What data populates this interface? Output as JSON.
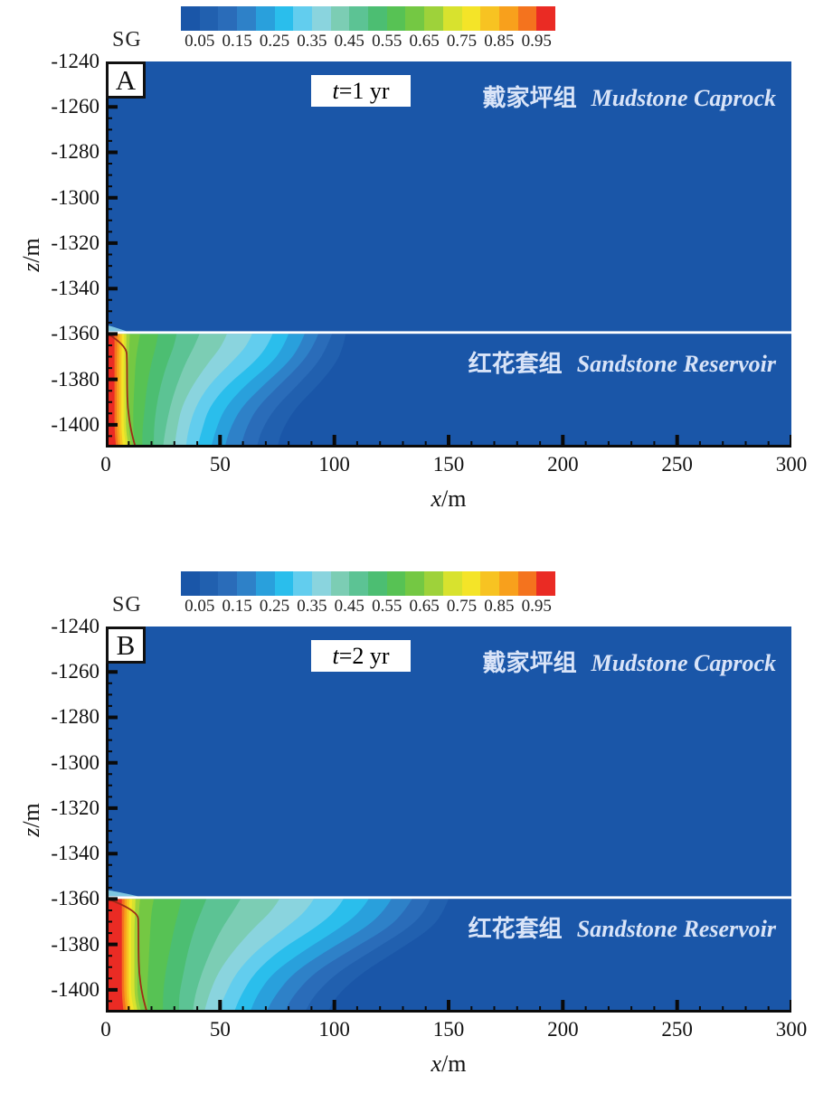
{
  "colorbar": {
    "title": "SG",
    "labels": [
      "0.05",
      "0.15",
      "0.25",
      "0.35",
      "0.45",
      "0.55",
      "0.65",
      "0.75",
      "0.85",
      "0.95"
    ]
  },
  "axes": {
    "x_label_var": "x",
    "x_label_unit": "/m",
    "y_label_var": "z",
    "y_label_unit": "/m",
    "x_ticks": [
      0,
      50,
      100,
      150,
      200,
      250,
      300
    ],
    "y_ticks": [
      -1240,
      -1260,
      -1280,
      -1300,
      -1320,
      -1340,
      -1360,
      -1380,
      -1400
    ]
  },
  "panels": [
    {
      "letter": "A",
      "time_var": "t",
      "time_rest": "=1 yr",
      "caprock_zh": "戴家坪组",
      "caprock_en": "Mudstone Caprock",
      "reservoir_zh": "红花套组",
      "reservoir_en": "Sandstone Reservoir"
    },
    {
      "letter": "B",
      "time_var": "t",
      "time_rest": "=2 yr",
      "caprock_zh": "戴家坪组",
      "caprock_en": "Mudstone Caprock",
      "reservoir_zh": "红花套组",
      "reservoir_en": "Sandstone Reservoir"
    }
  ],
  "chart_data": {
    "type": "heatmap",
    "variable": "SG (gas saturation), filled contour cross-sections of CO2 plume",
    "x_range_m": [
      0,
      300
    ],
    "z_range_m": [
      -1240,
      -1410
    ],
    "interface_z_m": -1360,
    "levels": [
      0.05,
      0.1,
      0.15,
      0.2,
      0.25,
      0.3,
      0.35,
      0.4,
      0.45,
      0.5,
      0.55,
      0.6,
      0.65,
      0.7,
      0.75,
      0.8,
      0.85,
      0.9,
      0.95
    ],
    "palette": [
      "#1A56A8",
      "#2160AF",
      "#2A6CB9",
      "#2E81C8",
      "#29A0DC",
      "#2ABEEC",
      "#62CDEE",
      "#8AD4DE",
      "#7CCDB4",
      "#5CC394",
      "#4CBE72",
      "#57C254",
      "#74C843",
      "#9ED23A",
      "#D8E22E",
      "#F4E428",
      "#F7C322",
      "#F8A01C",
      "#F4731E",
      "#EA2B24"
    ],
    "background_color": "#1A56A8",
    "interface_line_color": "#FFFFFF",
    "outline_color": "#9E2B17",
    "depth_fractions": [
      0,
      0.1,
      0.25,
      0.45,
      0.65,
      0.85,
      1
    ],
    "panels": [
      {
        "label": "A",
        "time": "t=1 yr",
        "extents_m": [
          [
            105,
            104,
            101,
            93,
            83,
            77,
            75
          ],
          [
            99,
            97,
            93,
            84,
            74,
            68,
            66
          ],
          [
            93,
            91,
            86,
            76,
            66,
            61,
            59
          ],
          [
            87,
            85,
            80,
            69,
            59,
            54,
            52
          ],
          [
            80,
            78,
            73,
            61,
            52,
            48,
            46
          ],
          [
            73,
            71,
            65,
            53,
            45,
            42,
            40
          ],
          [
            64,
            62,
            55,
            45,
            39,
            36,
            35
          ],
          [
            53,
            51,
            45,
            38,
            33,
            31,
            30
          ],
          [
            41,
            39,
            35,
            31,
            28,
            26,
            25
          ],
          [
            31,
            30,
            27,
            24,
            22,
            21,
            21
          ],
          [
            23,
            22,
            20,
            18,
            17,
            16,
            16
          ],
          [
            15,
            14,
            13,
            12.5,
            12,
            12,
            12.5
          ],
          [
            10.5,
            10.3,
            10,
            10,
            10,
            10,
            11.5
          ],
          [
            9,
            9,
            8.8,
            8.8,
            8.8,
            8.8,
            10
          ],
          [
            8,
            8,
            7.8,
            7.8,
            7.8,
            7.8,
            9
          ],
          [
            7,
            7,
            6.8,
            6.8,
            6.8,
            6.8,
            7.5
          ],
          [
            6,
            6,
            5.8,
            5.8,
            5.8,
            5.8,
            6.5
          ],
          [
            5,
            5,
            4.8,
            4.8,
            4.8,
            4.8,
            5.5
          ],
          [
            3.8,
            3.8,
            3.8,
            3.8,
            3.8,
            3.8,
            4.5
          ]
        ],
        "outline_x_m": [
          1,
          9,
          9.3,
          9.3,
          9.5,
          11,
          13
        ],
        "sliver_m": 9
      },
      {
        "label": "B",
        "time": "t=2 yr",
        "extents_m": [
          [
            150,
            148,
            143,
            128,
            112,
            101,
            97
          ],
          [
            142,
            140,
            133,
            117,
            101,
            91,
            87
          ],
          [
            134,
            131,
            124,
            107,
            91,
            82,
            78
          ],
          [
            125,
            122,
            114,
            97,
            82,
            74,
            70
          ],
          [
            115,
            112,
            103,
            87,
            73,
            66,
            63
          ],
          [
            104,
            101,
            92,
            76,
            65,
            59,
            56
          ],
          [
            91,
            88,
            79,
            66,
            57,
            52,
            49
          ],
          [
            76,
            73,
            65,
            56,
            49,
            45,
            43
          ],
          [
            59,
            56,
            51,
            46,
            42,
            39,
            38
          ],
          [
            44,
            42,
            39,
            36,
            34,
            32,
            32
          ],
          [
            33,
            32,
            30,
            28,
            26,
            25,
            25
          ],
          [
            21,
            20,
            19.5,
            19,
            18.5,
            18,
            18.5
          ],
          [
            15,
            14.5,
            14,
            13.8,
            13.8,
            13.8,
            15.5
          ],
          [
            13,
            12.8,
            12.5,
            12.5,
            12.5,
            12.5,
            14
          ],
          [
            11.5,
            11.3,
            11,
            11,
            11,
            11,
            12.5
          ],
          [
            10.3,
            10.1,
            10,
            10,
            10,
            10,
            11
          ],
          [
            9.2,
            9.1,
            9,
            9,
            9,
            9,
            10
          ],
          [
            8.2,
            8.1,
            8,
            8,
            8,
            8,
            9
          ],
          [
            7,
            7,
            7,
            7,
            7,
            7,
            7.8
          ]
        ],
        "outline_x_m": [
          1,
          14,
          14.3,
          14.3,
          14.5,
          16,
          18
        ],
        "sliver_m": 14
      }
    ]
  }
}
